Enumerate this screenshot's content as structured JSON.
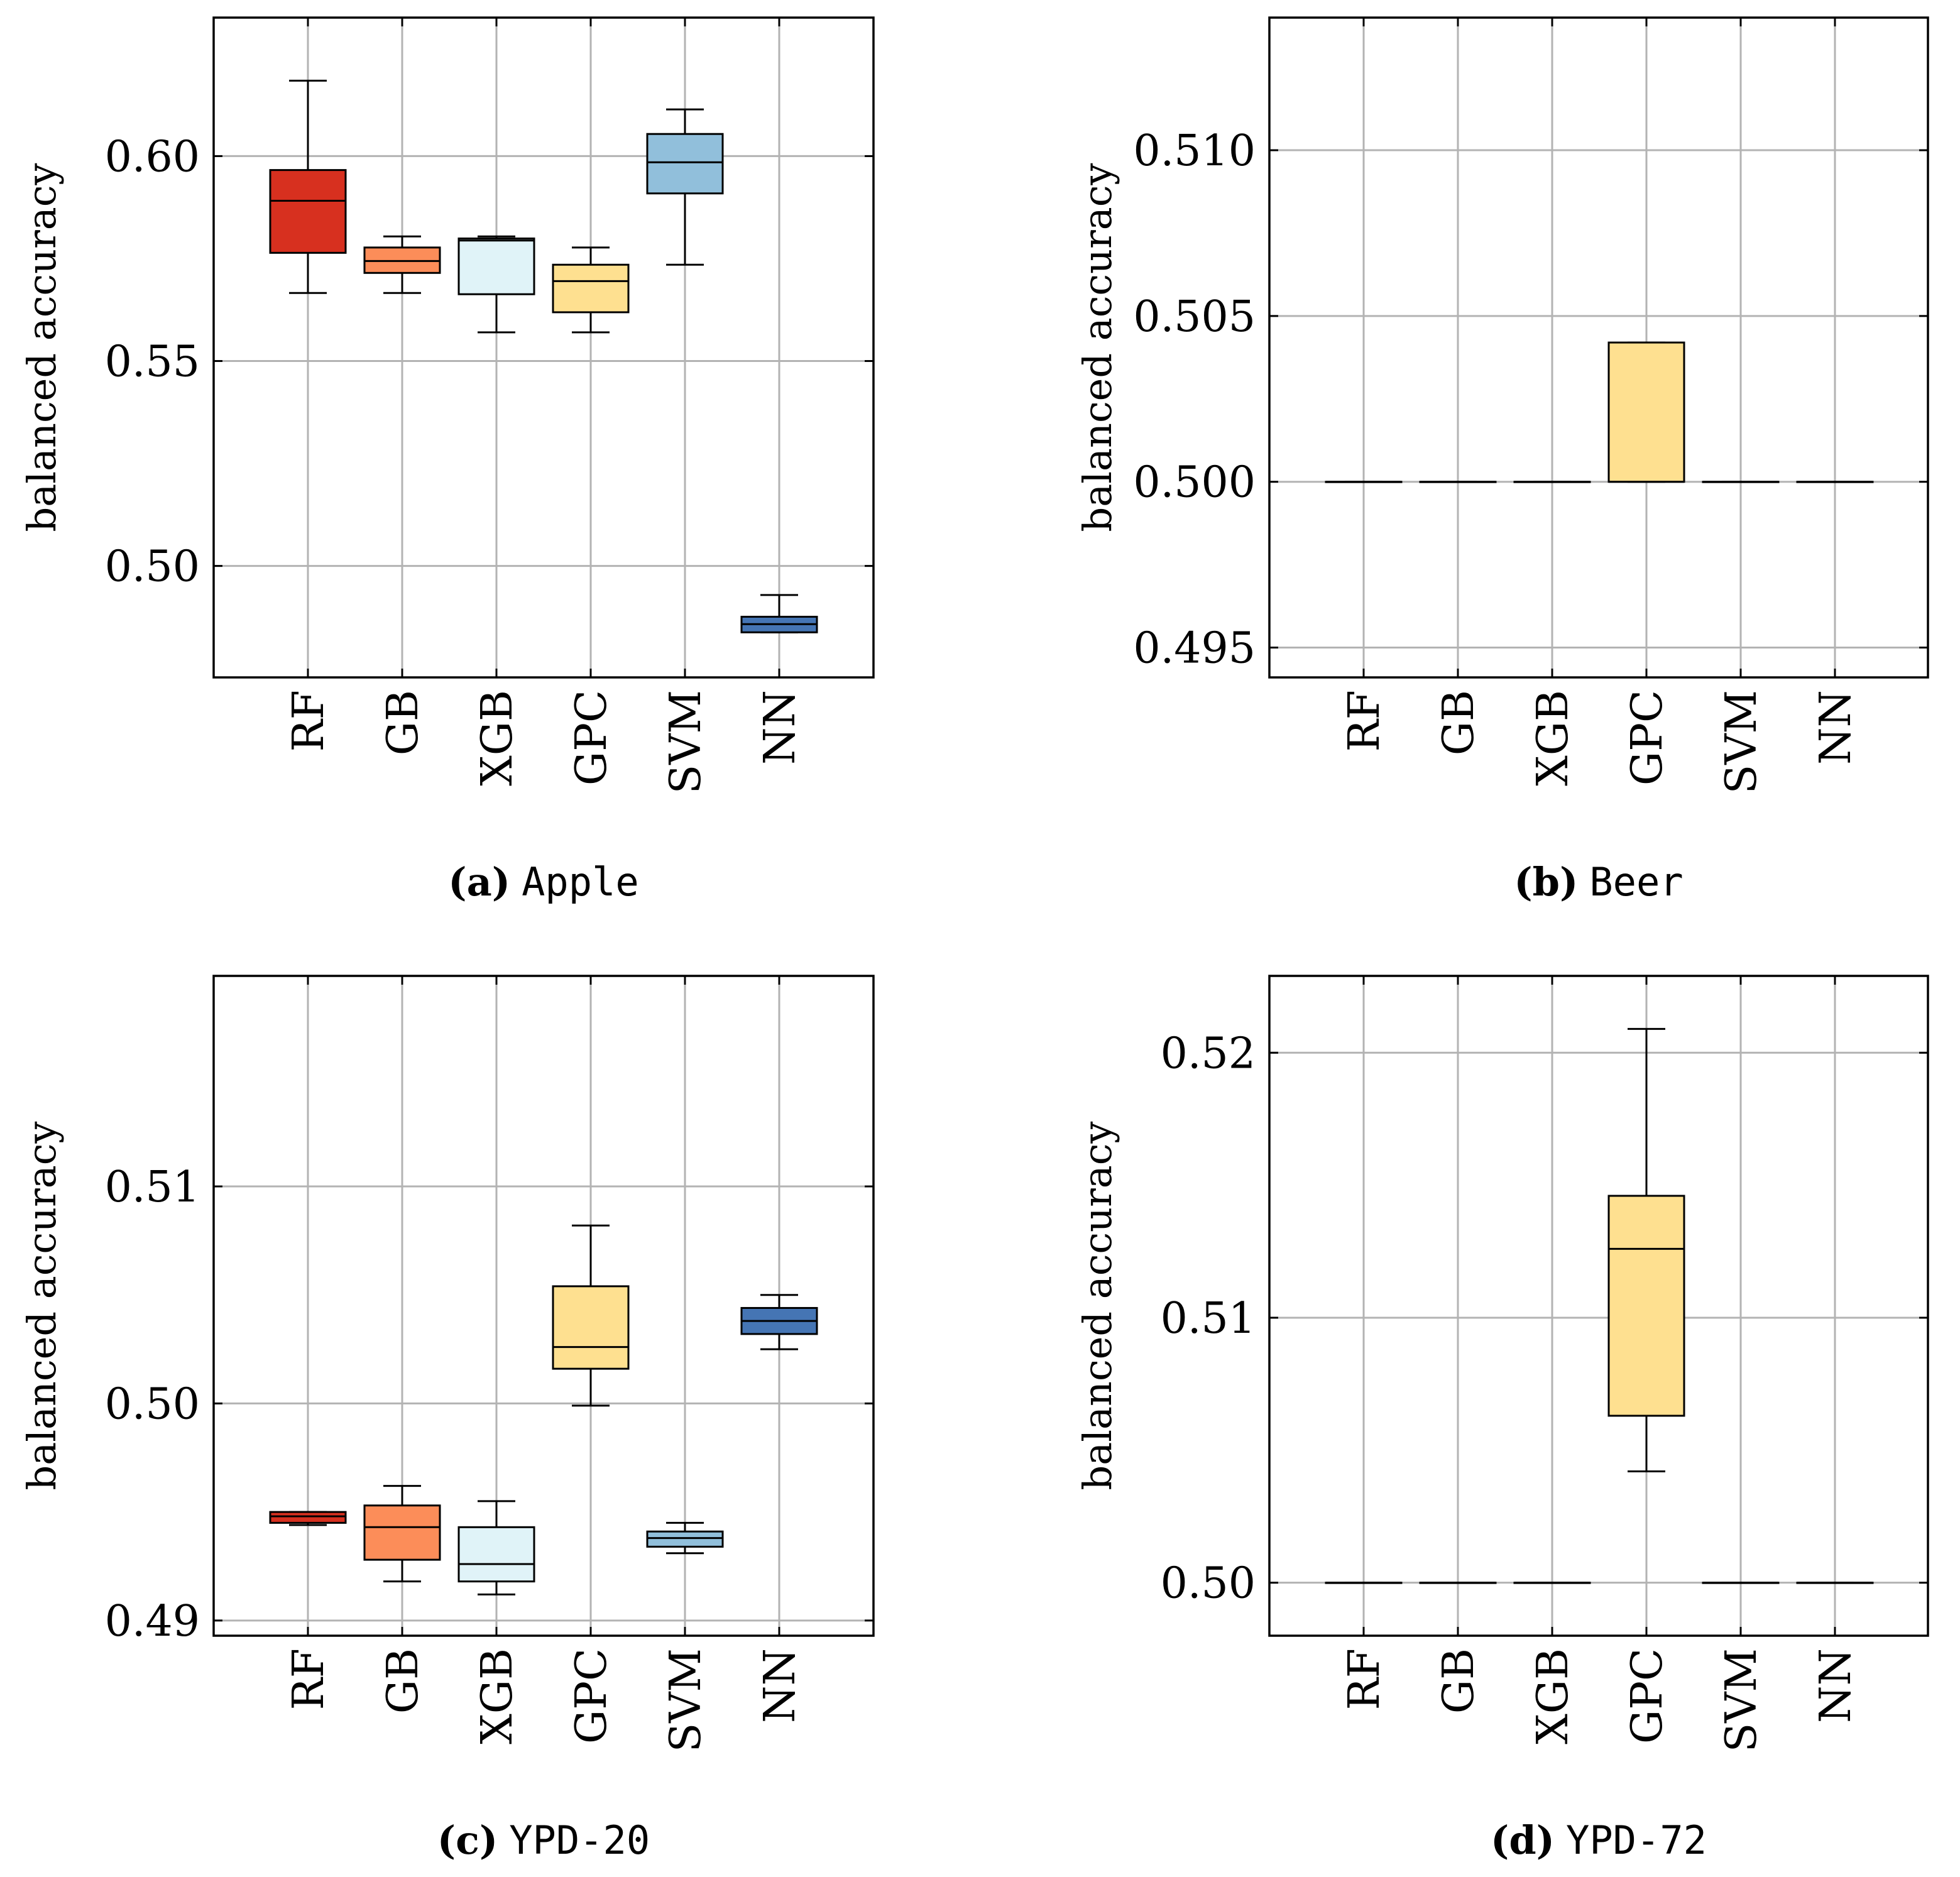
{
  "colors": {
    "RF": "#d7301f",
    "GB": "#fc8d59",
    "XGB": "#e0f3f8",
    "GPC": "#fee090",
    "SVM": "#91bfdb",
    "NN": "#4575b4",
    "grid": "#b3b3b3",
    "axis": "#000000"
  },
  "chart_data": [
    {
      "type": "boxplot",
      "caption_letter": "(a)",
      "caption_name": "Apple",
      "ylabel": "balanced accuracy",
      "ylim": [
        0.4728,
        0.6338
      ],
      "yticks": [
        0.5,
        0.55,
        0.6
      ],
      "ytick_labels": [
        "0.50",
        "0.55",
        "0.60"
      ],
      "categories": [
        "RF",
        "GB",
        "XGB",
        "GPC",
        "SVM",
        "NN"
      ],
      "boxes": [
        {
          "name": "RF",
          "min": 0.5666,
          "q1": 0.5764,
          "median": 0.5891,
          "q3": 0.5966,
          "max": 0.6184
        },
        {
          "name": "GB",
          "min": 0.5666,
          "q1": 0.5715,
          "median": 0.5744,
          "q3": 0.5777,
          "max": 0.5804
        },
        {
          "name": "XGB",
          "min": 0.557,
          "q1": 0.5663,
          "median": 0.5794,
          "q3": 0.5799,
          "max": 0.5804
        },
        {
          "name": "GPC",
          "min": 0.557,
          "q1": 0.5619,
          "median": 0.5695,
          "q3": 0.5735,
          "max": 0.5777
        },
        {
          "name": "SVM",
          "min": 0.5735,
          "q1": 0.5909,
          "median": 0.5985,
          "q3": 0.6054,
          "max": 0.6114
        },
        {
          "name": "NN",
          "min": 0.4838,
          "q1": 0.4838,
          "median": 0.4858,
          "q3": 0.4876,
          "max": 0.4929
        }
      ]
    },
    {
      "type": "boxplot",
      "caption_letter": "(b)",
      "caption_name": "Beer",
      "ylabel": "balanced accuracy",
      "ylim": [
        0.4941,
        0.514
      ],
      "yticks": [
        0.495,
        0.5,
        0.505,
        0.51
      ],
      "ytick_labels": [
        "0.495",
        "0.500",
        "0.505",
        "0.510"
      ],
      "categories": [
        "RF",
        "GB",
        "XGB",
        "GPC",
        "SVM",
        "NN"
      ],
      "boxes": [
        {
          "name": "RF",
          "min": 0.5,
          "q1": 0.5,
          "median": 0.5,
          "q3": 0.5,
          "max": 0.5
        },
        {
          "name": "GB",
          "min": 0.5,
          "q1": 0.5,
          "median": 0.5,
          "q3": 0.5,
          "max": 0.5
        },
        {
          "name": "XGB",
          "min": 0.5,
          "q1": 0.5,
          "median": 0.5,
          "q3": 0.5,
          "max": 0.5
        },
        {
          "name": "GPC",
          "min": 0.5,
          "q1": 0.5,
          "median": 0.5,
          "q3": 0.5042,
          "max": 0.5042
        },
        {
          "name": "SVM",
          "min": 0.5,
          "q1": 0.5,
          "median": 0.5,
          "q3": 0.5,
          "max": 0.5
        },
        {
          "name": "NN",
          "min": 0.5,
          "q1": 0.5,
          "median": 0.5,
          "q3": 0.5,
          "max": 0.5
        }
      ]
    },
    {
      "type": "boxplot",
      "caption_letter": "(c)",
      "caption_name": "YPD-20",
      "ylabel": "balanced accuracy",
      "ylim": [
        0.4893,
        0.5197
      ],
      "yticks": [
        0.49,
        0.5,
        0.51
      ],
      "ytick_labels": [
        "0.49",
        "0.50",
        "0.51"
      ],
      "categories": [
        "RF",
        "GB",
        "XGB",
        "GPC",
        "SVM",
        "NN"
      ],
      "boxes": [
        {
          "name": "RF",
          "min": 0.4944,
          "q1": 0.4945,
          "median": 0.4948,
          "q3": 0.495,
          "max": 0.495
        },
        {
          "name": "GB",
          "min": 0.4918,
          "q1": 0.4928,
          "median": 0.4943,
          "q3": 0.4953,
          "max": 0.4962
        },
        {
          "name": "XGB",
          "min": 0.4912,
          "q1": 0.4918,
          "median": 0.4926,
          "q3": 0.4943,
          "max": 0.4955
        },
        {
          "name": "GPC",
          "min": 0.4999,
          "q1": 0.5016,
          "median": 0.5026,
          "q3": 0.5054,
          "max": 0.5082
        },
        {
          "name": "SVM",
          "min": 0.4931,
          "q1": 0.4934,
          "median": 0.4938,
          "q3": 0.4941,
          "max": 0.4945
        },
        {
          "name": "NN",
          "min": 0.5025,
          "q1": 0.5032,
          "median": 0.5038,
          "q3": 0.5044,
          "max": 0.505
        }
      ]
    },
    {
      "type": "boxplot",
      "caption_letter": "(d)",
      "caption_name": "YPD-72",
      "ylabel": "balanced accuracy",
      "ylim": [
        0.498,
        0.5229
      ],
      "yticks": [
        0.5,
        0.51,
        0.52
      ],
      "ytick_labels": [
        "0.50",
        "0.51",
        "0.52"
      ],
      "categories": [
        "RF",
        "GB",
        "XGB",
        "GPC",
        "SVM",
        "NN"
      ],
      "boxes": [
        {
          "name": "RF",
          "min": 0.5,
          "q1": 0.5,
          "median": 0.5,
          "q3": 0.5,
          "max": 0.5
        },
        {
          "name": "GB",
          "min": 0.5,
          "q1": 0.5,
          "median": 0.5,
          "q3": 0.5,
          "max": 0.5
        },
        {
          "name": "XGB",
          "min": 0.5,
          "q1": 0.5,
          "median": 0.5,
          "q3": 0.5,
          "max": 0.5
        },
        {
          "name": "GPC",
          "min": 0.5042,
          "q1": 0.5063,
          "median": 0.5126,
          "q3": 0.5146,
          "max": 0.5209
        },
        {
          "name": "SVM",
          "min": 0.5,
          "q1": 0.5,
          "median": 0.5,
          "q3": 0.5,
          "max": 0.5
        },
        {
          "name": "NN",
          "min": 0.5,
          "q1": 0.5,
          "median": 0.5,
          "q3": 0.5,
          "max": 0.5
        }
      ]
    }
  ]
}
